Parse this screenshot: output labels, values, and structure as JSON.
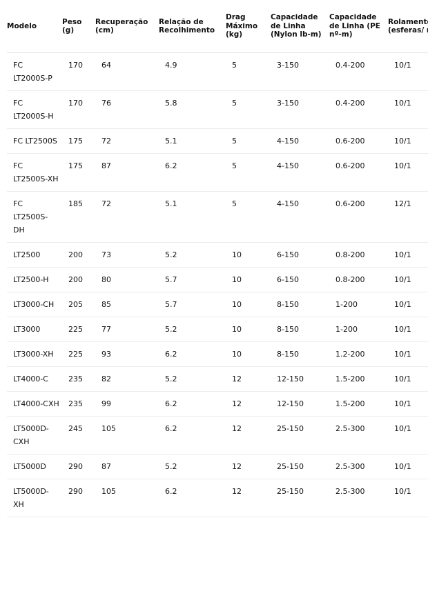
{
  "table": {
    "headers": [
      "Modelo",
      "Peso (g)",
      "Recuperação (cm)",
      "Relação de Recolhimento",
      "Drag Máximo (kg)",
      "Capacidade de Linha (Nylon lb-m)",
      "Capacidade de Linha (PE nº-m)",
      "Rolamentos (esferas/ roletes)"
    ],
    "rows": [
      [
        "FC LT2000S-P",
        "170",
        "64",
        "4.9",
        "5",
        "3-150",
        "0.4-200",
        "10/1"
      ],
      [
        "FC LT2000S-H",
        "170",
        "76",
        "5.8",
        "5",
        "3-150",
        "0.4-200",
        "10/1"
      ],
      [
        "FC LT2500S",
        "175",
        "72",
        "5.1",
        "5",
        "4-150",
        "0.6-200",
        "10/1"
      ],
      [
        "FC LT2500S-XH",
        "175",
        "87",
        "6.2",
        "5",
        "4-150",
        "0.6-200",
        "10/1"
      ],
      [
        "FC LT2500S-DH",
        "185",
        "72",
        "5.1",
        "5",
        "4-150",
        "0.6-200",
        "12/1"
      ],
      [
        "LT2500",
        "200",
        "73",
        "5.2",
        "10",
        "6-150",
        "0.8-200",
        "10/1"
      ],
      [
        "LT2500-H",
        "200",
        "80",
        "5.7",
        "10",
        "6-150",
        "0.8-200",
        "10/1"
      ],
      [
        "LT3000-CH",
        "205",
        "85",
        "5.7",
        "10",
        "8-150",
        "1-200",
        "10/1"
      ],
      [
        "LT3000",
        "225",
        "77",
        "5.2",
        "10",
        "8-150",
        "1-200",
        "10/1"
      ],
      [
        "LT3000-XH",
        "225",
        "93",
        "6.2",
        "10",
        "8-150",
        "1.2-200",
        "10/1"
      ],
      [
        "LT4000-C",
        "235",
        "82",
        "5.2",
        "12",
        "12-150",
        "1.5-200",
        "10/1"
      ],
      [
        "LT4000-CXH",
        "235",
        "99",
        "6.2",
        "12",
        "12-150",
        "1.5-200",
        "10/1"
      ],
      [
        "LT5000D-CXH",
        "245",
        "105",
        "6.2",
        "12",
        "25-150",
        "2.5-300",
        "10/1"
      ],
      [
        "LT5000D",
        "290",
        "87",
        "5.2",
        "12",
        "25-150",
        "2.5-300",
        "10/1"
      ],
      [
        "LT5000D-XH",
        "290",
        "105",
        "6.2",
        "12",
        "25-150",
        "2.5-300",
        "10/1"
      ]
    ]
  }
}
